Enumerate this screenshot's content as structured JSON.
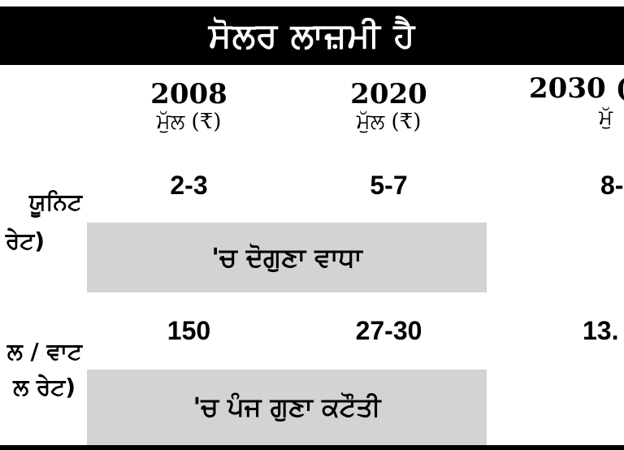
{
  "title": "ਸੋਲਰ ਲਾਜ਼ਮੀ ਹੈ",
  "columns": [
    {
      "year": "2008",
      "label": "ਮੁੱਲ (₹)"
    },
    {
      "year": "2020",
      "label": "ਮੁੱਲ (₹)"
    },
    {
      "year": "2030 (",
      "label": "ਮੁੱ"
    }
  ],
  "rows": [
    {
      "label_line1": "ਯੂਨਿਟ",
      "label_line2": "ਰੇਟ)",
      "values": [
        "2-3",
        "5-7",
        "8-"
      ],
      "note": "'ਚ ਦੋਗੁਣਾ ਵਾਧਾ"
    },
    {
      "label_line1": "ਲ / ਵਾਟ",
      "label_line2": "ਲ ਰੇਟ)",
      "values": [
        "150",
        "27-30",
        "13."
      ],
      "note": "'ਚ ਪੰਜ ਗੁਣਾ ਕਟੌਤੀ"
    }
  ]
}
